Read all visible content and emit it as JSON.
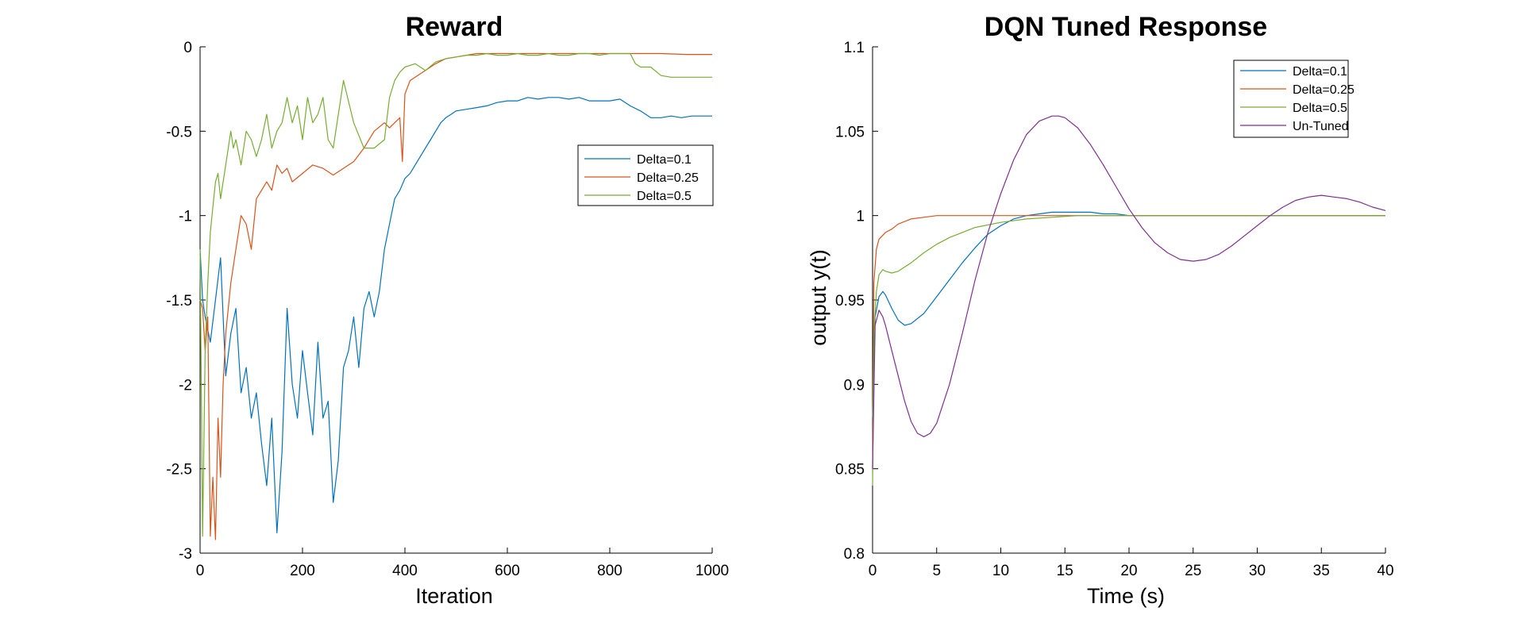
{
  "colors": {
    "blue": "#0072BD",
    "orange": "#D95319",
    "olive": "#77AC30",
    "purple": "#7E2F8E"
  },
  "chart_data": [
    {
      "type": "line",
      "title": "Reward",
      "xlabel": "Iteration",
      "ylabel": "",
      "xlim": [
        0,
        1000
      ],
      "ylim": [
        -3,
        0
      ],
      "xticks": [
        0,
        200,
        400,
        600,
        800,
        1000
      ],
      "xtick_labels": [
        "0",
        "200",
        "400",
        "600",
        "800",
        "1000"
      ],
      "yticks": [
        -3,
        -2.5,
        -2,
        -1.5,
        -1,
        -0.5,
        0
      ],
      "ytick_labels": [
        "-3",
        "-2.5",
        "-2",
        "-1.5",
        "-1",
        "-0.5",
        "0"
      ],
      "grid": false,
      "legend_position": "right-center",
      "series": [
        {
          "name": "Delta=0.1",
          "color": "#0072BD",
          "x": [
            0,
            5,
            10,
            20,
            30,
            40,
            50,
            60,
            70,
            80,
            90,
            100,
            110,
            120,
            130,
            140,
            150,
            160,
            170,
            180,
            190,
            200,
            210,
            220,
            230,
            240,
            250,
            260,
            270,
            280,
            290,
            300,
            310,
            320,
            330,
            340,
            350,
            360,
            370,
            380,
            390,
            400,
            410,
            420,
            430,
            440,
            450,
            460,
            470,
            480,
            490,
            500,
            520,
            540,
            560,
            580,
            600,
            620,
            640,
            660,
            680,
            700,
            720,
            740,
            760,
            780,
            800,
            820,
            840,
            860,
            880,
            900,
            920,
            940,
            960,
            980,
            1000
          ],
          "y": [
            -1.2,
            -1.5,
            -1.6,
            -1.75,
            -1.5,
            -1.25,
            -1.95,
            -1.7,
            -1.55,
            -2.05,
            -1.9,
            -2.2,
            -2.05,
            -2.35,
            -2.6,
            -2.2,
            -2.88,
            -2.4,
            -1.55,
            -2.0,
            -2.2,
            -1.8,
            -2.05,
            -2.3,
            -1.75,
            -2.2,
            -2.1,
            -2.7,
            -2.45,
            -1.9,
            -1.8,
            -1.6,
            -1.9,
            -1.55,
            -1.45,
            -1.6,
            -1.45,
            -1.2,
            -1.05,
            -0.9,
            -0.85,
            -0.78,
            -0.75,
            -0.7,
            -0.65,
            -0.6,
            -0.55,
            -0.5,
            -0.45,
            -0.42,
            -0.4,
            -0.38,
            -0.37,
            -0.36,
            -0.35,
            -0.33,
            -0.32,
            -0.32,
            -0.3,
            -0.31,
            -0.3,
            -0.3,
            -0.31,
            -0.3,
            -0.32,
            -0.32,
            -0.32,
            -0.31,
            -0.35,
            -0.38,
            -0.42,
            -0.42,
            -0.41,
            -0.42,
            -0.41,
            -0.41,
            -0.41
          ]
        },
        {
          "name": "Delta=0.25",
          "color": "#D95319",
          "x": [
            0,
            5,
            10,
            15,
            20,
            25,
            30,
            35,
            40,
            45,
            50,
            60,
            70,
            80,
            90,
            100,
            110,
            120,
            130,
            140,
            150,
            160,
            170,
            180,
            200,
            220,
            240,
            260,
            280,
            300,
            320,
            340,
            360,
            370,
            380,
            390,
            395,
            400,
            410,
            420,
            440,
            460,
            480,
            500,
            520,
            540,
            560,
            580,
            600,
            650,
            700,
            750,
            800,
            850,
            900,
            950,
            1000
          ],
          "y": [
            -1.5,
            -1.55,
            -1.8,
            -1.6,
            -2.9,
            -2.55,
            -2.92,
            -2.2,
            -2.55,
            -2.0,
            -1.7,
            -1.4,
            -1.2,
            -1.0,
            -1.05,
            -1.2,
            -0.9,
            -0.85,
            -0.8,
            -0.85,
            -0.7,
            -0.75,
            -0.72,
            -0.8,
            -0.75,
            -0.7,
            -0.72,
            -0.76,
            -0.72,
            -0.68,
            -0.6,
            -0.5,
            -0.45,
            -0.48,
            -0.45,
            -0.42,
            -0.68,
            -0.28,
            -0.2,
            -0.18,
            -0.14,
            -0.1,
            -0.07,
            -0.06,
            -0.05,
            -0.04,
            -0.04,
            -0.04,
            -0.04,
            -0.04,
            -0.04,
            -0.04,
            -0.04,
            -0.04,
            -0.04,
            -0.045,
            -0.045
          ]
        },
        {
          "name": "Delta=0.5",
          "color": "#77AC30",
          "x": [
            0,
            5,
            10,
            15,
            20,
            25,
            30,
            35,
            40,
            50,
            55,
            60,
            65,
            70,
            80,
            90,
            100,
            110,
            120,
            130,
            140,
            150,
            160,
            170,
            180,
            190,
            200,
            210,
            220,
            230,
            240,
            250,
            260,
            280,
            300,
            320,
            340,
            360,
            370,
            380,
            390,
            400,
            420,
            440,
            460,
            480,
            500,
            520,
            540,
            560,
            580,
            600,
            620,
            640,
            660,
            680,
            700,
            720,
            740,
            760,
            780,
            800,
            820,
            840,
            850,
            860,
            880,
            900,
            920,
            940,
            960,
            980,
            1000
          ],
          "y": [
            -1.2,
            -2.9,
            -1.8,
            -1.4,
            -1.1,
            -0.95,
            -0.8,
            -0.75,
            -0.9,
            -0.7,
            -0.6,
            -0.5,
            -0.6,
            -0.55,
            -0.7,
            -0.5,
            -0.55,
            -0.65,
            -0.55,
            -0.4,
            -0.6,
            -0.5,
            -0.45,
            -0.3,
            -0.45,
            -0.35,
            -0.55,
            -0.3,
            -0.45,
            -0.4,
            -0.3,
            -0.55,
            -0.6,
            -0.2,
            -0.45,
            -0.6,
            -0.6,
            -0.55,
            -0.3,
            -0.2,
            -0.15,
            -0.12,
            -0.1,
            -0.14,
            -0.09,
            -0.07,
            -0.06,
            -0.05,
            -0.05,
            -0.04,
            -0.05,
            -0.05,
            -0.04,
            -0.05,
            -0.05,
            -0.04,
            -0.05,
            -0.05,
            -0.04,
            -0.04,
            -0.05,
            -0.04,
            -0.04,
            -0.04,
            -0.1,
            -0.12,
            -0.12,
            -0.17,
            -0.18,
            -0.18,
            -0.18,
            -0.18,
            -0.18
          ]
        }
      ]
    },
    {
      "type": "line",
      "title": "DQN Tuned Response",
      "xlabel": "Time (s)",
      "ylabel": "output y(t)",
      "xlim": [
        0,
        40
      ],
      "ylim": [
        0.8,
        1.1
      ],
      "xticks": [
        0,
        5,
        10,
        15,
        20,
        25,
        30,
        35,
        40
      ],
      "xtick_labels": [
        "0",
        "5",
        "10",
        "15",
        "20",
        "25",
        "30",
        "35",
        "40"
      ],
      "yticks": [
        0.8,
        0.85,
        0.9,
        0.95,
        1,
        1.05,
        1.1
      ],
      "ytick_labels": [
        "0.8",
        "0.85",
        "0.9",
        "0.95",
        "1",
        "1.05",
        "1.1"
      ],
      "grid": false,
      "legend_position": "top-right",
      "series": [
        {
          "name": "Delta=0.1",
          "color": "#0072BD",
          "x": [
            0,
            0.2,
            0.5,
            0.8,
            1.0,
            1.5,
            2.0,
            2.5,
            3.0,
            4.0,
            5.0,
            6.0,
            7.0,
            8.0,
            9.0,
            10.0,
            11.0,
            12.0,
            13.0,
            14.0,
            15.0,
            16.0,
            17.0,
            18.0,
            19.0,
            20.0,
            22.0,
            25.0,
            30.0,
            35.0,
            40.0
          ],
          "y": [
            0.88,
            0.94,
            0.952,
            0.955,
            0.953,
            0.945,
            0.938,
            0.935,
            0.936,
            0.942,
            0.952,
            0.962,
            0.972,
            0.981,
            0.989,
            0.994,
            0.998,
            1.0,
            1.001,
            1.002,
            1.002,
            1.002,
            1.002,
            1.001,
            1.001,
            1.0,
            1.0,
            1.0,
            1.0,
            1.0,
            1.0
          ]
        },
        {
          "name": "Delta=0.25",
          "color": "#D95319",
          "x": [
            0,
            0.1,
            0.3,
            0.5,
            1.0,
            1.5,
            2.0,
            3.0,
            4.0,
            5.0,
            6.0,
            8.0,
            10.0,
            15.0,
            20.0,
            25.0,
            30.0,
            35.0,
            40.0
          ],
          "y": [
            0.85,
            0.96,
            0.98,
            0.986,
            0.99,
            0.992,
            0.995,
            0.998,
            0.999,
            1.0,
            1.0,
            1.0,
            1.0,
            1.0,
            1.0,
            1.0,
            1.0,
            1.0,
            1.0
          ]
        },
        {
          "name": "Delta=0.5",
          "color": "#77AC30",
          "x": [
            0,
            0.1,
            0.3,
            0.5,
            0.8,
            1.0,
            1.5,
            2.0,
            3.0,
            4.0,
            5.0,
            6.0,
            7.0,
            8.0,
            10.0,
            12.0,
            14.0,
            16.0,
            18.0,
            20.0,
            25.0,
            30.0,
            35.0,
            40.0
          ],
          "y": [
            0.84,
            0.93,
            0.955,
            0.965,
            0.968,
            0.967,
            0.966,
            0.967,
            0.972,
            0.978,
            0.983,
            0.987,
            0.99,
            0.993,
            0.996,
            0.998,
            0.999,
            1.0,
            1.0,
            1.0,
            1.0,
            1.0,
            1.0,
            1.0
          ]
        },
        {
          "name": "Un-Tuned",
          "color": "#7E2F8E",
          "x": [
            0,
            0.2,
            0.5,
            0.8,
            1.0,
            1.5,
            2.0,
            2.5,
            3.0,
            3.5,
            4.0,
            4.5,
            5.0,
            6.0,
            7.0,
            8.0,
            9.0,
            10.0,
            11.0,
            12.0,
            13.0,
            14.0,
            14.5,
            15.0,
            16.0,
            17.0,
            18.0,
            19.0,
            20.0,
            21.0,
            22.0,
            23.0,
            24.0,
            25.0,
            26.0,
            27.0,
            28.0,
            29.0,
            30.0,
            31.0,
            32.0,
            33.0,
            34.0,
            35.0,
            36.0,
            37.0,
            38.0,
            39.0,
            40.0
          ],
          "y": [
            0.85,
            0.935,
            0.944,
            0.94,
            0.935,
            0.92,
            0.905,
            0.89,
            0.878,
            0.871,
            0.869,
            0.871,
            0.877,
            0.9,
            0.93,
            0.962,
            0.99,
            1.013,
            1.033,
            1.048,
            1.056,
            1.059,
            1.059,
            1.058,
            1.052,
            1.042,
            1.03,
            1.017,
            1.004,
            0.993,
            0.984,
            0.978,
            0.974,
            0.973,
            0.974,
            0.977,
            0.982,
            0.988,
            0.994,
            1.0,
            1.005,
            1.009,
            1.011,
            1.012,
            1.011,
            1.01,
            1.008,
            1.005,
            1.003
          ]
        }
      ]
    }
  ]
}
